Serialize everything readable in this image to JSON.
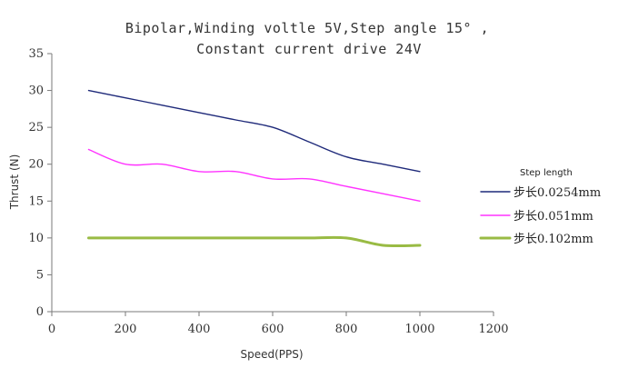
{
  "chart_data": {
    "type": "line",
    "title_line1": "Bipolar,Winding voltle 5V,Step angle 15° ,",
    "title_line2": "Constant current drive 24V",
    "xlabel": "Speed(PPS)",
    "ylabel": "Thrust (N)",
    "xlim": [
      0,
      1200
    ],
    "ylim": [
      0,
      35
    ],
    "x_ticks": [
      "0",
      "200",
      "400",
      "600",
      "800",
      "1000",
      "1200"
    ],
    "y_ticks": [
      "0",
      "5",
      "10",
      "15",
      "20",
      "25",
      "30",
      "35"
    ],
    "legend_title": "Step length",
    "legend_position": "right",
    "grid": false,
    "series": [
      {
        "name": "步长0.0254mm",
        "color": "#1f2a7a",
        "x": [
          100,
          200,
          300,
          400,
          500,
          600,
          700,
          800,
          900,
          1000
        ],
        "values": [
          30,
          29,
          28,
          27,
          26,
          25,
          23,
          21,
          20,
          19
        ]
      },
      {
        "name": "步长0.051mm",
        "color": "#ff33ff",
        "x": [
          100,
          200,
          300,
          400,
          500,
          600,
          700,
          800,
          900,
          1000
        ],
        "values": [
          22,
          20,
          20,
          19,
          19,
          18,
          18,
          17,
          16,
          15
        ]
      },
      {
        "name": "步长0.102mm",
        "color": "#99bb44",
        "x": [
          100,
          200,
          300,
          400,
          500,
          600,
          700,
          800,
          900,
          1000
        ],
        "values": [
          10,
          10,
          10,
          10,
          10,
          10,
          10,
          10,
          9,
          9
        ]
      }
    ]
  }
}
